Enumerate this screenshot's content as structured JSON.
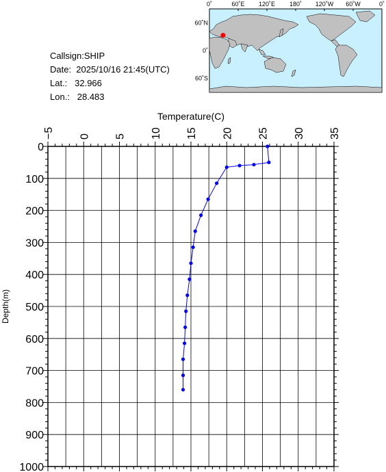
{
  "station": {
    "callsign": "Callsign:SHIP",
    "date": "Date:  2025/10/16 21:45(UTC)",
    "lat": "Lat.:   32.966",
    "lon": "Lon.:   28.483"
  },
  "map": {
    "top_labels": [
      "0˚",
      "60˚E",
      "120˚E",
      "180˚",
      "120˚W",
      "60˚W",
      "0˚"
    ],
    "left_labels": [
      "60˚N",
      "0˚",
      "60˚S"
    ],
    "marker_lat": 32.966,
    "marker_lon": 28.483,
    "colors": {
      "ocean": "#c8f0ff",
      "land": "#c0c0c0",
      "marker": "#ff0000"
    }
  },
  "chart_data": {
    "type": "line",
    "xlabel": "Temperature(C)",
    "ylabel": "Depth(m)",
    "xlim": [
      -5,
      35
    ],
    "ylim": [
      0,
      1000
    ],
    "y_inverted": true,
    "x_ticks": [
      "-5",
      "0",
      "5",
      "10",
      "15",
      "20",
      "25",
      "30",
      "35"
    ],
    "y_ticks": [
      "0",
      "100",
      "200",
      "300",
      "400",
      "500",
      "600",
      "700",
      "800",
      "900",
      "1000"
    ],
    "grid": true,
    "series_color": "#0000ff",
    "points": [
      {
        "temp": 25.7,
        "depth": 0
      },
      {
        "temp": 25.9,
        "depth": 50
      },
      {
        "temp": 23.8,
        "depth": 57
      },
      {
        "temp": 21.8,
        "depth": 60
      },
      {
        "temp": 20.0,
        "depth": 65
      },
      {
        "temp": 18.6,
        "depth": 115
      },
      {
        "temp": 17.4,
        "depth": 165
      },
      {
        "temp": 16.4,
        "depth": 215
      },
      {
        "temp": 15.6,
        "depth": 265
      },
      {
        "temp": 15.3,
        "depth": 315
      },
      {
        "temp": 15.0,
        "depth": 365
      },
      {
        "temp": 14.8,
        "depth": 415
      },
      {
        "temp": 14.5,
        "depth": 465
      },
      {
        "temp": 14.3,
        "depth": 515
      },
      {
        "temp": 14.2,
        "depth": 565
      },
      {
        "temp": 14.1,
        "depth": 615
      },
      {
        "temp": 13.9,
        "depth": 665
      },
      {
        "temp": 13.9,
        "depth": 715
      },
      {
        "temp": 13.9,
        "depth": 760
      }
    ]
  }
}
